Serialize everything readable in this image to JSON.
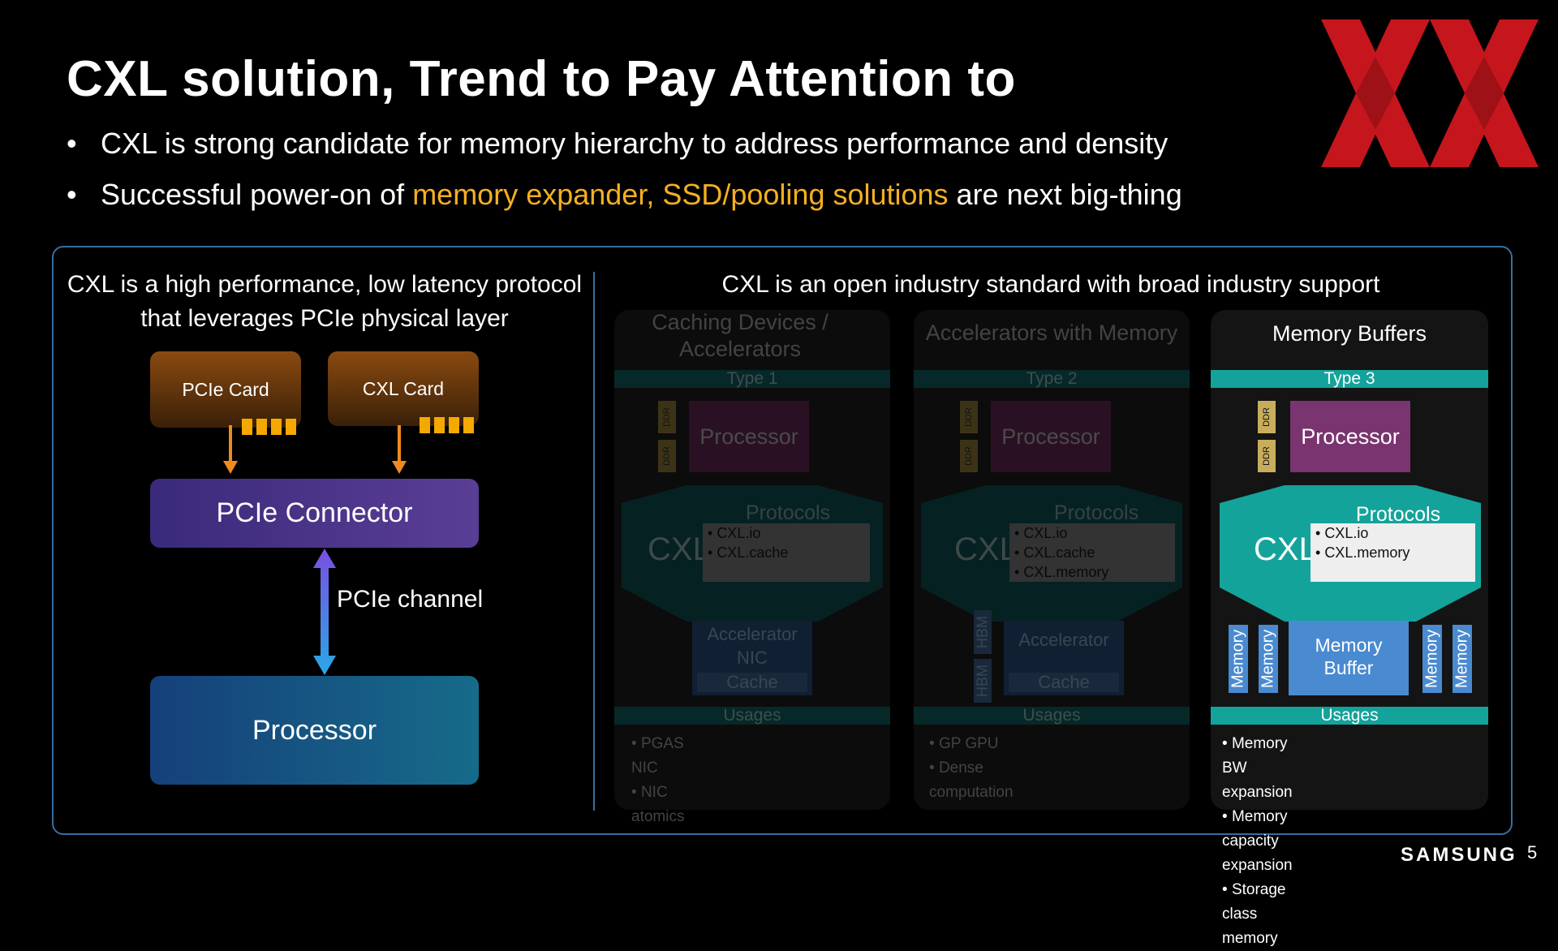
{
  "slide": {
    "title": "CXL solution, Trend to Pay Attention to",
    "bullets": [
      {
        "text": "CXL is strong candidate for memory hierarchy to address performance and density"
      },
      {
        "pre": "Successful power-on of ",
        "highlight": "memory expander, SSD/pooling solutions",
        "post": " are next big-thing"
      }
    ],
    "page_number": "5",
    "brand": "SAMSUNG"
  },
  "colors": {
    "highlight": "#f5b021",
    "frame": "#3a6e9e",
    "logo_red": "#c4161c",
    "teal": "#14a39a"
  },
  "left_panel": {
    "heading_line1": "CXL is a high performance, low latency protocol",
    "heading_line2": "that leverages PCIe physical layer",
    "pcie_card": "PCIe Card",
    "cxl_card": "CXL Card",
    "connector": "PCIe Connector",
    "channel": "PCIe channel",
    "processor": "Processor"
  },
  "right_panel": {
    "heading": "CXL is an open industry standard with broad industry support",
    "columns": [
      {
        "category_line1": "Caching Devices /",
        "category_line2": "Accelerators",
        "type": "Type 1",
        "ddr": "DDR",
        "processor": "Processor",
        "cxl": "CXL",
        "protocols": "Protocols",
        "protocol_items": [
          "CXL.io",
          "CXL.cache"
        ],
        "device_lines": [
          "Accelerator",
          "NIC"
        ],
        "cache": "Cache",
        "usages_label": "Usages",
        "usages": [
          "PGAS NIC",
          "NIC atomics"
        ]
      },
      {
        "category_line1": "Accelerators with Memory",
        "type": "Type 2",
        "ddr": "DDR",
        "processor": "Processor",
        "cxl": "CXL",
        "protocols": "Protocols",
        "protocol_items": [
          "CXL.io",
          "CXL.cache",
          "CXL.memory"
        ],
        "hbm": "HBM",
        "device_lines": [
          "Accelerator"
        ],
        "cache": "Cache",
        "usages_label": "Usages",
        "usages": [
          "GP GPU",
          "Dense computation"
        ]
      },
      {
        "category_line1": "Memory Buffers",
        "type": "Type 3",
        "ddr": "DDR",
        "processor": "Processor",
        "cxl": "CXL",
        "protocols": "Protocols",
        "protocol_items": [
          "CXL.io",
          "CXL.memory"
        ],
        "memory": "Memory",
        "buffer_lines": [
          "Memory",
          "Buffer"
        ],
        "usages_label": "Usages",
        "usages": [
          "Memory BW expansion",
          "Memory capacity expansion",
          "Storage class memory"
        ]
      }
    ]
  }
}
